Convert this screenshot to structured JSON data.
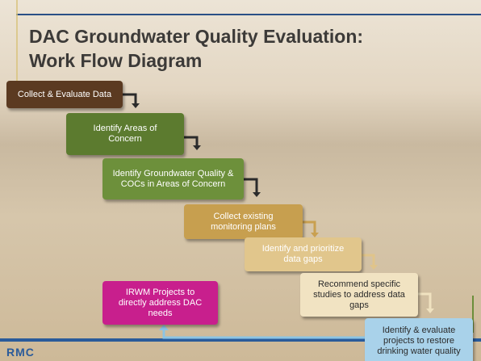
{
  "title": [
    "DAC Groundwater Quality Evaluation:",
    "Work Flow Diagram"
  ],
  "steps": [
    {
      "label": "Collect & Evaluate Data"
    },
    {
      "label": "Identify  Areas of Concern"
    },
    {
      "label": "Identify Groundwater Quality & COCs in Areas of Concern"
    },
    {
      "label": "Collect existing monitoring plans"
    },
    {
      "label": "Identify and prioritize data gaps"
    },
    {
      "label": "Recommend specific studies to address data gaps"
    },
    {
      "label": "Identify & evaluate projects to restore drinking water quality"
    }
  ],
  "side_box": {
    "label": "IRWM Projects to directly address DAC needs"
  },
  "logo": "RMC"
}
